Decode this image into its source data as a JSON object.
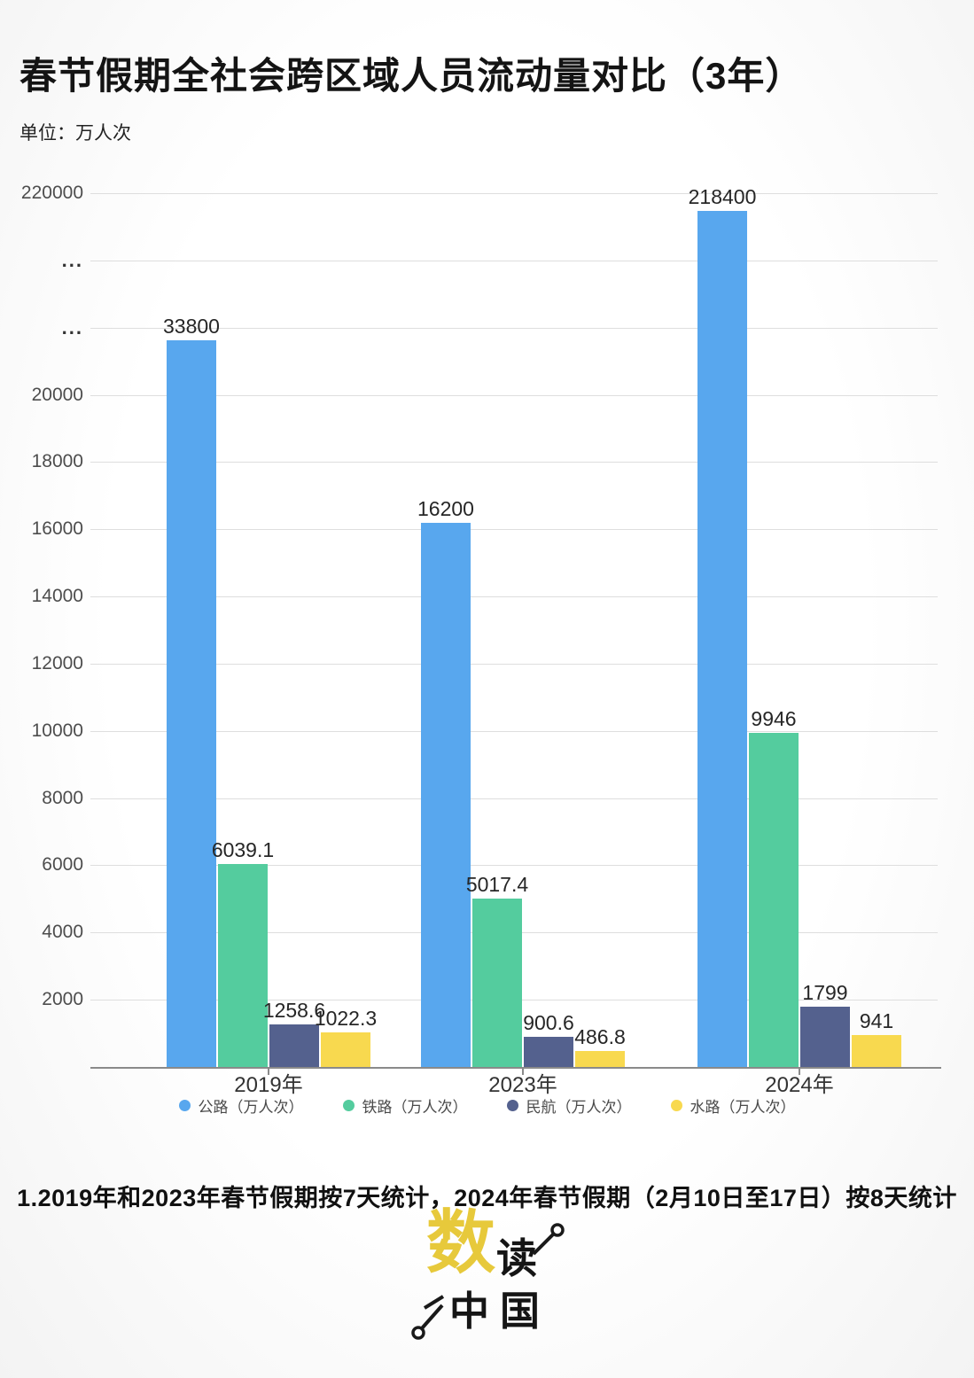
{
  "header": {
    "title": "春节假期全社会跨区域人员流动量对比（3年）",
    "unit_label": "单位：万人次"
  },
  "chart_data": {
    "type": "bar",
    "title": "春节假期全社会跨区域人员流动量对比（3年）",
    "unit": "万人次",
    "categories": [
      "2019年",
      "2023年",
      "2024年"
    ],
    "category_keys": [
      "2019",
      "2023",
      "2024"
    ],
    "series": [
      {
        "key": "highway",
        "name": "公路（万人次）",
        "color": "#58a7ee",
        "values": [
          33800,
          16200,
          218400
        ]
      },
      {
        "key": "railway",
        "name": "铁路（万人次）",
        "color": "#54cc9e",
        "values": [
          6039.1,
          5017.4,
          9946
        ]
      },
      {
        "key": "civil-aviation",
        "name": "民航（万人次）",
        "color": "#54618e",
        "values": [
          1258.6,
          900.6,
          1799
        ]
      },
      {
        "key": "waterway",
        "name": "水路（万人次）",
        "color": "#f8d94f",
        "values": [
          1022.3,
          486.8,
          941
        ]
      }
    ],
    "y_axis": {
      "tick_labels_bottom_to_top": [
        "2000",
        "4000",
        "6000",
        "8000",
        "10000",
        "12000",
        "14000",
        "16000",
        "18000",
        "20000",
        "...",
        "...",
        "220000"
      ],
      "broken_axis": true,
      "linear_range_top": 20000,
      "top_tick_value": 220000
    },
    "grid": true,
    "legend_position": "bottom"
  },
  "footnote": {
    "text": "1.2019年和2023年春节假期按7天统计，2024年春节假期（2月10日至17日）按8天统计"
  },
  "logo": {
    "char_primary": "数",
    "char_secondary": "读",
    "line2": "中国"
  }
}
